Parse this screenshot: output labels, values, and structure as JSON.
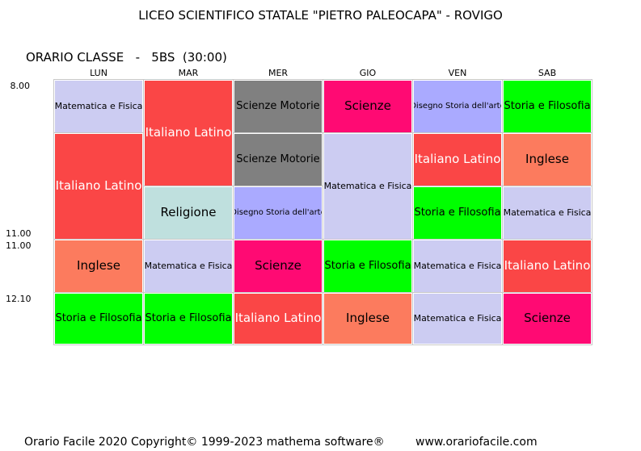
{
  "header": {
    "school": "LICEO SCIENTIFICO STATALE \"PIETRO PALEOCAPA\" - ROVIGO",
    "class_line": "ORARIO CLASSE   -   5BS  (30:00)"
  },
  "days": [
    "LUN",
    "MAR",
    "MER",
    "GIO",
    "VEN",
    "SAB"
  ],
  "times": [
    "8.00",
    "11.00",
    "11.00",
    "12.10"
  ],
  "subjects": {
    "mf": "Matematica e Fisica",
    "it": "Italiano Latino",
    "sm": "Scienze  Motorie",
    "sc": "Scienze",
    "ds": "Disegno Storia dell'arte",
    "sf": "Storia e Filosofia",
    "in": "Inglese",
    "re": "Religione"
  },
  "colors": {
    "matematica_fisica": "#ccccf2",
    "italiano_latino": "#fa4646",
    "scienze_motorie": "#808080",
    "scienze": "#ff0a73",
    "disegno_storia_arte": "#aaaaff",
    "storia_filosofia": "#00ff00",
    "inglese": "#fc7b5e",
    "religione": "#bfe0de"
  },
  "footer": {
    "copyright": "Orario Facile 2020  Copyright© 1999-2023 mathema software®",
    "website": "www.orariofacile.com"
  }
}
